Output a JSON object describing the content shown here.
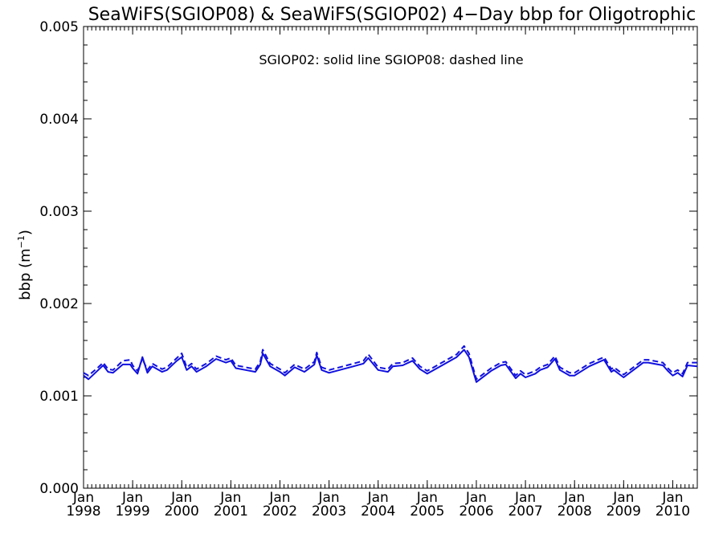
{
  "chart_data": {
    "type": "line",
    "title": "SeaWiFS(SGIOP08) & SeaWiFS(SGIOP02) 4−Day bbp for Oligotrophic",
    "annotation": "SGIOP02: solid line   SGIOP08: dashed line",
    "ylabel": "bbp (m",
    "ylabel_exp": "−1",
    "ylabel_close": ")",
    "ylim": [
      0,
      0.005
    ],
    "xlim": [
      1998.0,
      2010.5
    ],
    "y_ticks": [
      "0.000",
      "0.001",
      "0.002",
      "0.003",
      "0.004",
      "0.005"
    ],
    "x_ticks": [
      {
        "month": "Jan",
        "year": "1998"
      },
      {
        "month": "Jan",
        "year": "1999"
      },
      {
        "month": "Jan",
        "year": "2000"
      },
      {
        "month": "Jan",
        "year": "2001"
      },
      {
        "month": "Jan",
        "year": "2002"
      },
      {
        "month": "Jan",
        "year": "2003"
      },
      {
        "month": "Jan",
        "year": "2004"
      },
      {
        "month": "Jan",
        "year": "2005"
      },
      {
        "month": "Jan",
        "year": "2006"
      },
      {
        "month": "Jan",
        "year": "2007"
      },
      {
        "month": "Jan",
        "year": "2008"
      },
      {
        "month": "Jan",
        "year": "2009"
      },
      {
        "month": "Jan",
        "year": "2010"
      }
    ],
    "line_color": "#1010e0",
    "series": [
      {
        "name": "SGIOP02",
        "style": "solid",
        "x": [
          1998.0,
          1998.1,
          1998.3,
          1998.4,
          1998.5,
          1998.6,
          1998.8,
          1998.95,
          1999.0,
          1999.1,
          1999.2,
          1999.3,
          1999.4,
          1999.6,
          1999.7,
          1999.9,
          2000.0,
          2000.1,
          2000.2,
          2000.3,
          2000.5,
          2000.7,
          2000.9,
          2001.0,
          2001.1,
          2001.3,
          2001.5,
          2001.6,
          2001.65,
          2001.8,
          2002.0,
          2002.1,
          2002.3,
          2002.5,
          2002.7,
          2002.75,
          2002.85,
          2003.0,
          2003.5,
          2003.7,
          2003.8,
          2004.0,
          2004.2,
          2004.3,
          2004.5,
          2004.7,
          2004.85,
          2005.0,
          2005.2,
          2005.4,
          2005.6,
          2005.75,
          2005.85,
          2006.0,
          2006.3,
          2006.5,
          2006.6,
          2006.8,
          2006.9,
          2007.0,
          2007.2,
          2007.3,
          2007.45,
          2007.6,
          2007.7,
          2007.9,
          2008.0,
          2008.3,
          2008.6,
          2008.75,
          2008.8,
          2008.9,
          2009.0,
          2009.2,
          2009.4,
          2009.5,
          2009.8,
          2009.9,
          2010.0,
          2010.1,
          2010.2,
          2010.3,
          2010.5
        ],
        "values": [
          0.00122,
          0.00118,
          0.00128,
          0.00133,
          0.00126,
          0.00125,
          0.00134,
          0.00134,
          0.0013,
          0.00124,
          0.00142,
          0.00125,
          0.00132,
          0.00126,
          0.00128,
          0.00138,
          0.00142,
          0.00128,
          0.00132,
          0.00126,
          0.00132,
          0.0014,
          0.00136,
          0.00138,
          0.0013,
          0.00128,
          0.00126,
          0.00134,
          0.00146,
          0.00132,
          0.00126,
          0.00122,
          0.00131,
          0.00126,
          0.00134,
          0.00144,
          0.00128,
          0.00125,
          0.00132,
          0.00135,
          0.00141,
          0.00128,
          0.00126,
          0.00132,
          0.00133,
          0.00138,
          0.00129,
          0.00124,
          0.0013,
          0.00136,
          0.00142,
          0.0015,
          0.00142,
          0.00115,
          0.00127,
          0.00133,
          0.00134,
          0.00119,
          0.00124,
          0.0012,
          0.00124,
          0.00128,
          0.00131,
          0.0014,
          0.00128,
          0.00122,
          0.00122,
          0.00132,
          0.00139,
          0.00126,
          0.00128,
          0.00124,
          0.0012,
          0.00128,
          0.00136,
          0.00136,
          0.00133,
          0.00127,
          0.00122,
          0.00125,
          0.00121,
          0.00133,
          0.00132
        ]
      },
      {
        "name": "SGIOP08",
        "style": "dashed",
        "x": [
          1998.0,
          1998.1,
          1998.3,
          1998.4,
          1998.5,
          1998.6,
          1998.8,
          1998.95,
          1999.0,
          1999.1,
          1999.2,
          1999.3,
          1999.4,
          1999.6,
          1999.7,
          1999.9,
          2000.0,
          2000.1,
          2000.2,
          2000.3,
          2000.5,
          2000.7,
          2000.9,
          2001.0,
          2001.1,
          2001.3,
          2001.5,
          2001.6,
          2001.65,
          2001.8,
          2002.0,
          2002.1,
          2002.3,
          2002.5,
          2002.7,
          2002.75,
          2002.85,
          2003.0,
          2003.5,
          2003.7,
          2003.8,
          2004.0,
          2004.2,
          2004.3,
          2004.5,
          2004.7,
          2004.85,
          2005.0,
          2005.2,
          2005.4,
          2005.6,
          2005.75,
          2005.85,
          2006.0,
          2006.3,
          2006.5,
          2006.6,
          2006.8,
          2006.9,
          2007.0,
          2007.2,
          2007.3,
          2007.45,
          2007.6,
          2007.7,
          2007.9,
          2008.0,
          2008.3,
          2008.6,
          2008.75,
          2008.8,
          2008.9,
          2009.0,
          2009.2,
          2009.4,
          2009.5,
          2009.8,
          2009.9,
          2010.0,
          2010.1,
          2010.2,
          2010.3,
          2010.5
        ],
        "values": [
          0.00125,
          0.00122,
          0.00131,
          0.00136,
          0.00129,
          0.00128,
          0.00138,
          0.00139,
          0.00133,
          0.00127,
          0.0014,
          0.00128,
          0.00135,
          0.00129,
          0.00131,
          0.00141,
          0.00146,
          0.00131,
          0.00135,
          0.00129,
          0.00135,
          0.00143,
          0.00139,
          0.00141,
          0.00133,
          0.00131,
          0.00129,
          0.00137,
          0.0015,
          0.00135,
          0.00129,
          0.00125,
          0.00134,
          0.00129,
          0.00137,
          0.00147,
          0.00131,
          0.00128,
          0.00135,
          0.00138,
          0.00145,
          0.00131,
          0.00129,
          0.00135,
          0.00136,
          0.00141,
          0.00132,
          0.00127,
          0.00133,
          0.00139,
          0.00145,
          0.00154,
          0.00146,
          0.00118,
          0.0013,
          0.00136,
          0.00137,
          0.00122,
          0.00127,
          0.00123,
          0.00127,
          0.00131,
          0.00134,
          0.00143,
          0.00131,
          0.00125,
          0.00125,
          0.00135,
          0.00142,
          0.00129,
          0.00131,
          0.00127,
          0.00123,
          0.00131,
          0.00139,
          0.00139,
          0.00136,
          0.0013,
          0.00125,
          0.00128,
          0.00124,
          0.00136,
          0.00136
        ]
      }
    ],
    "grid": false,
    "legend": "top-center"
  }
}
